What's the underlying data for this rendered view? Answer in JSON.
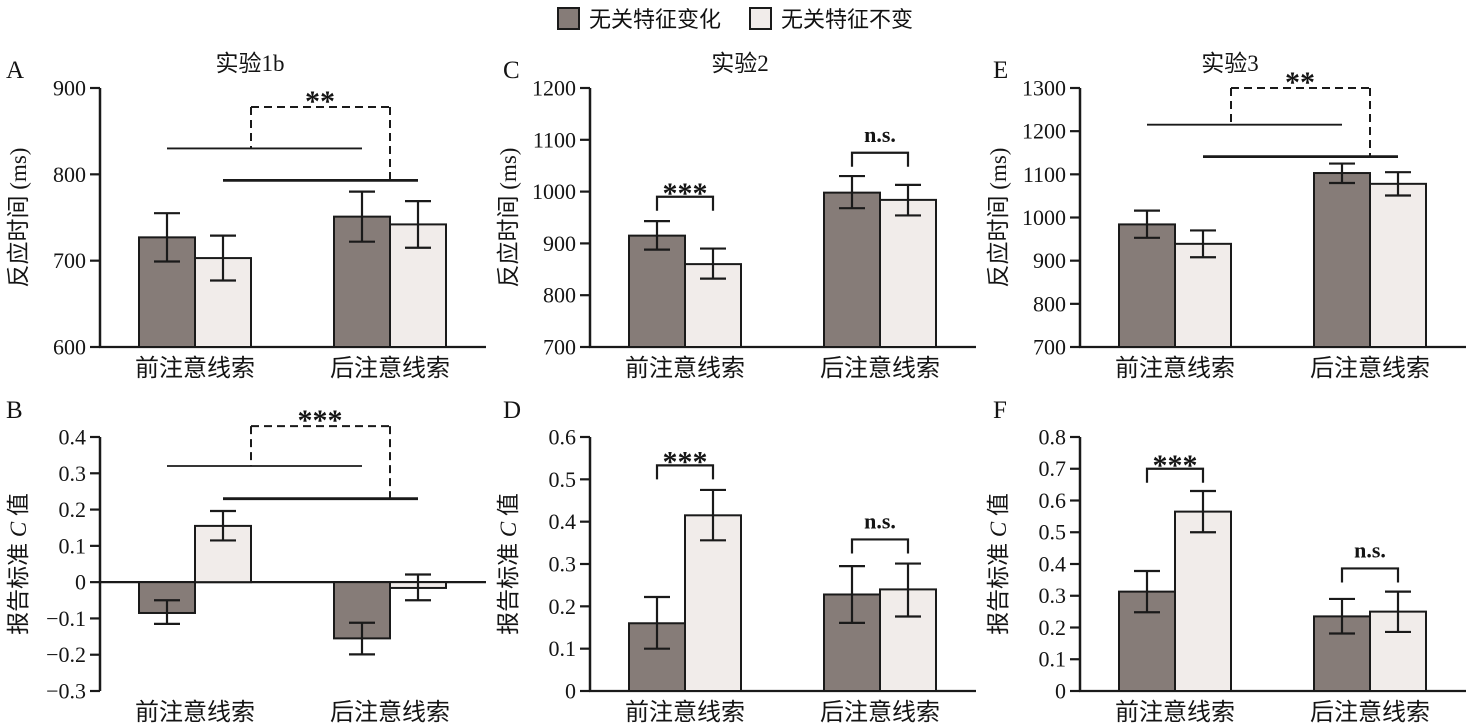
{
  "legend": {
    "items": [
      {
        "label": "无关特征变化",
        "swatch": "dark"
      },
      {
        "label": "无关特征不变",
        "swatch": "light"
      }
    ]
  },
  "colors": {
    "dark_fill": "#867c78",
    "light_fill": "#f1ecea",
    "line": "#1a1a1a",
    "text": "#141414"
  },
  "chart_data": [
    {
      "panel": "A",
      "title": "实验1b",
      "type": "bar",
      "ylabel": "反应时间 (ms)",
      "ylabel_kind": "rt",
      "ylim": [
        600,
        900
      ],
      "yticks": [
        600,
        700,
        800,
        900
      ],
      "ytick_labels": [
        "600",
        "700",
        "800",
        "900"
      ],
      "categories": [
        "前注意线索",
        "后注意线索"
      ],
      "series": [
        {
          "name": "无关特征变化",
          "values": [
            727,
            751
          ],
          "err_lo": [
            699,
            722
          ],
          "err_hi": [
            755,
            780
          ]
        },
        {
          "name": "无关特征不变",
          "values": [
            703,
            742
          ],
          "err_lo": [
            677,
            715
          ],
          "err_hi": [
            729,
            769
          ]
        }
      ],
      "significance": {
        "kind": "interaction",
        "label": "**",
        "line1_y": 830,
        "line2_y": 793,
        "top_y": 878
      }
    },
    {
      "panel": "C",
      "title": "实验2",
      "type": "bar",
      "ylabel": "反应时间 (ms)",
      "ylabel_kind": "rt",
      "ylim": [
        700,
        1200
      ],
      "yticks": [
        700,
        800,
        900,
        1000,
        1100,
        1200
      ],
      "ytick_labels": [
        "700",
        "800",
        "900",
        "1000",
        "1100",
        "1200"
      ],
      "categories": [
        "前注意线索",
        "后注意线索"
      ],
      "series": [
        {
          "name": "无关特征变化",
          "values": [
            915,
            998
          ],
          "err_lo": [
            888,
            968
          ],
          "err_hi": [
            943,
            1030
          ]
        },
        {
          "name": "无关特征不变",
          "values": [
            860,
            984
          ],
          "err_lo": [
            832,
            954
          ],
          "err_hi": [
            890,
            1013
          ]
        }
      ],
      "significance": {
        "kind": "brackets",
        "items": [
          {
            "group": 0,
            "label": "***",
            "y": 990
          },
          {
            "group": 1,
            "label": "n.s.",
            "y": 1075
          }
        ]
      }
    },
    {
      "panel": "E",
      "title": "实验3",
      "type": "bar",
      "ylabel": "反应时间 (ms)",
      "ylabel_kind": "rt",
      "ylim": [
        700,
        1300
      ],
      "yticks": [
        700,
        800,
        900,
        1000,
        1100,
        1200,
        1300
      ],
      "ytick_labels": [
        "700",
        "800",
        "900",
        "1000",
        "1100",
        "1200",
        "1300"
      ],
      "categories": [
        "前注意线索",
        "后注意线索"
      ],
      "series": [
        {
          "name": "无关特征变化",
          "values": [
            984,
            1103
          ],
          "err_lo": [
            953,
            1080
          ],
          "err_hi": [
            1016,
            1125
          ]
        },
        {
          "name": "无关特征不变",
          "values": [
            939,
            1078
          ],
          "err_lo": [
            908,
            1051
          ],
          "err_hi": [
            970,
            1105
          ]
        }
      ],
      "significance": {
        "kind": "interaction",
        "label": "**",
        "line1_y": 1215,
        "line2_y": 1141,
        "top_y": 1300
      }
    },
    {
      "panel": "B",
      "title": "",
      "type": "bar",
      "ylabel": "报告标准 C 值",
      "ylabel_kind": "c",
      "ylim": [
        -0.3,
        0.4
      ],
      "yticks": [
        -0.3,
        -0.2,
        -0.1,
        0,
        0.1,
        0.2,
        0.3,
        0.4
      ],
      "ytick_labels": [
        "−0.3",
        "−0.2",
        "−0.1",
        "0",
        "0.1",
        "0.2",
        "0.3",
        "0.4"
      ],
      "categories": [
        "前注意线索",
        "后注意线索"
      ],
      "series": [
        {
          "name": "无关特征变化",
          "values": [
            -0.085,
            -0.155
          ],
          "err_lo": [
            -0.115,
            -0.199
          ],
          "err_hi": [
            -0.05,
            -0.112
          ]
        },
        {
          "name": "无关特征不变",
          "values": [
            0.155,
            -0.016
          ],
          "err_lo": [
            0.115,
            -0.05
          ],
          "err_hi": [
            0.196,
            0.021
          ]
        }
      ],
      "significance": {
        "kind": "interaction",
        "label": "***",
        "line1_y": 0.32,
        "line2_y": 0.23,
        "top_y": 0.43
      }
    },
    {
      "panel": "D",
      "title": "",
      "type": "bar",
      "ylabel": "报告标准 C 值",
      "ylabel_kind": "c",
      "ylim": [
        0,
        0.6
      ],
      "yticks": [
        0,
        0.1,
        0.2,
        0.3,
        0.4,
        0.5,
        0.6
      ],
      "ytick_labels": [
        "0",
        "0.1",
        "0.2",
        "0.3",
        "0.4",
        "0.5",
        "0.6"
      ],
      "categories": [
        "前注意线索",
        "后注意线索"
      ],
      "series": [
        {
          "name": "无关特征变化",
          "values": [
            0.16,
            0.228
          ],
          "err_lo": [
            0.1,
            0.161
          ],
          "err_hi": [
            0.222,
            0.295
          ]
        },
        {
          "name": "无关特征不变",
          "values": [
            0.415,
            0.24
          ],
          "err_lo": [
            0.356,
            0.176
          ],
          "err_hi": [
            0.475,
            0.301
          ]
        }
      ],
      "significance": {
        "kind": "brackets",
        "items": [
          {
            "group": 0,
            "label": "***",
            "y": 0.533
          },
          {
            "group": 1,
            "label": "n.s.",
            "y": 0.358
          }
        ]
      }
    },
    {
      "panel": "F",
      "title": "",
      "type": "bar",
      "ylabel": "报告标准 C 值",
      "ylabel_kind": "c",
      "ylim": [
        0,
        0.8
      ],
      "yticks": [
        0,
        0.1,
        0.2,
        0.3,
        0.4,
        0.5,
        0.6,
        0.7,
        0.8
      ],
      "ytick_labels": [
        "0",
        "0.1",
        "0.2",
        "0.3",
        "0.4",
        "0.5",
        "0.6",
        "0.7",
        "0.8"
      ],
      "categories": [
        "前注意线索",
        "后注意线索"
      ],
      "series": [
        {
          "name": "无关特征变化",
          "values": [
            0.313,
            0.235
          ],
          "err_lo": [
            0.248,
            0.181
          ],
          "err_hi": [
            0.378,
            0.29
          ]
        },
        {
          "name": "无关特征不变",
          "values": [
            0.565,
            0.25
          ],
          "err_lo": [
            0.5,
            0.186
          ],
          "err_hi": [
            0.63,
            0.313
          ]
        }
      ],
      "significance": {
        "kind": "brackets",
        "items": [
          {
            "group": 0,
            "label": "***",
            "y": 0.7
          },
          {
            "group": 1,
            "label": "n.s.",
            "y": 0.386
          }
        ]
      }
    }
  ]
}
